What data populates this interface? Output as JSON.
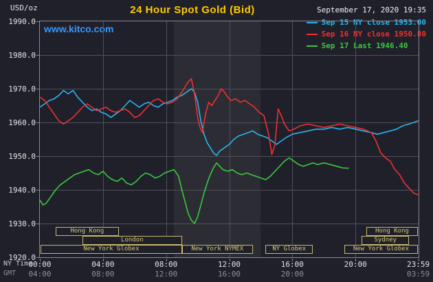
{
  "header": {
    "unit_label": "USD/oz",
    "title": "24 Hour Spot Gold (Bid)",
    "datetime": "September 17, 2020 19:35",
    "watermark": "www.kitco.com"
  },
  "legend": {
    "items": [
      {
        "label": "Sep 15 NY close 1953.00",
        "color": "#29b6f0"
      },
      {
        "label": "Sep 16 NY close 1950.80",
        "color": "#f23030"
      },
      {
        "label": "Sep 17 Last 1946.40",
        "color": "#3cc83c"
      }
    ]
  },
  "axes": {
    "ny_time_label": "NY Time",
    "gmt_label": "GMT",
    "y_ticks": [
      {
        "v": 1990,
        "label": "1990.0"
      },
      {
        "v": 1980,
        "label": "1980.0"
      },
      {
        "v": 1970,
        "label": "1970.0"
      },
      {
        "v": 1960,
        "label": "1960.0"
      },
      {
        "v": 1950,
        "label": "1950.0"
      },
      {
        "v": 1940,
        "label": "1940.0"
      },
      {
        "v": 1930,
        "label": "1930.0"
      },
      {
        "v": 1920,
        "label": "1920.0"
      }
    ],
    "x_ticks_ny": [
      {
        "t": 0,
        "label": "00:00"
      },
      {
        "t": 4,
        "label": "04:00"
      },
      {
        "t": 8,
        "label": "08:00"
      },
      {
        "t": 12,
        "label": "12:00"
      },
      {
        "t": 16,
        "label": "16:00"
      },
      {
        "t": 20,
        "label": "20:00"
      },
      {
        "t": 23.98,
        "label": "23:59"
      }
    ],
    "x_ticks_gmt": [
      {
        "t": 0,
        "label": "04:00"
      },
      {
        "t": 4,
        "label": "08:00"
      },
      {
        "t": 8,
        "label": "12:00"
      },
      {
        "t": 12,
        "label": "16:00"
      },
      {
        "t": 16,
        "label": "20:00"
      },
      {
        "t": 23.98,
        "label": "03:59"
      }
    ],
    "grid_hours": [
      4,
      8,
      12,
      16,
      20
    ],
    "grid_values": [
      1980,
      1970,
      1960,
      1950,
      1940,
      1930
    ]
  },
  "sessions": [
    {
      "label": "Hong Kong",
      "row": 0,
      "start": 1.0,
      "end": 5.0
    },
    {
      "label": "London",
      "row": 1,
      "start": 2.7,
      "end": 9.0
    },
    {
      "label": "New York Globex",
      "row": 2,
      "start": 0.05,
      "end": 9.0
    },
    {
      "label": "New York NYMEX",
      "row": 2,
      "start": 9.0,
      "end": 13.5
    },
    {
      "label": "NY Globex",
      "row": 2,
      "start": 14.3,
      "end": 17.3
    },
    {
      "label": "New York Globex",
      "row": 2,
      "start": 19.3,
      "end": 23.95
    },
    {
      "label": "Sydney",
      "row": 1,
      "start": 20.4,
      "end": 23.4
    },
    {
      "label": "Hong Kong",
      "row": 0,
      "start": 20.7,
      "end": 23.95
    }
  ],
  "colors": {
    "background": "#20202a",
    "band": "#2c2c35",
    "grid": "#50505a",
    "border": "#8a8a94",
    "axis_text": "#e6e6e6",
    "gmt_text": "#90909a",
    "session_box": "#c8b968",
    "session_text": "#d6c878",
    "title": "#ffcc00",
    "watermark": "#3399ff",
    "sep15": "#29b6f0",
    "sep16": "#f23030",
    "sep17": "#3cc83c"
  },
  "chart_data": {
    "type": "line",
    "title": "24 Hour Spot Gold (Bid)",
    "xlabel": "NY Time (hours)",
    "ylabel": "USD/oz",
    "xlim": [
      0,
      24
    ],
    "ylim": [
      1920,
      1990
    ],
    "grid": true,
    "legend_position": "top-right",
    "highlight_band": {
      "start": 8.5,
      "end": 14.0
    },
    "series": [
      {
        "name": "Sep 15",
        "close_label": "NY close 1953.00",
        "close": 1953.0,
        "color": "#29b6f0",
        "points": [
          [
            0,
            1964.5
          ],
          [
            0.3,
            1965.5
          ],
          [
            0.6,
            1966.5
          ],
          [
            0.9,
            1967
          ],
          [
            1.2,
            1968
          ],
          [
            1.5,
            1969.5
          ],
          [
            1.8,
            1968.5
          ],
          [
            2.1,
            1969.5
          ],
          [
            2.4,
            1967.5
          ],
          [
            2.7,
            1966
          ],
          [
            3,
            1964.5
          ],
          [
            3.3,
            1963.5
          ],
          [
            3.6,
            1964
          ],
          [
            3.9,
            1963
          ],
          [
            4.2,
            1962.5
          ],
          [
            4.5,
            1961.5
          ],
          [
            4.8,
            1962.5
          ],
          [
            5.1,
            1963.5
          ],
          [
            5.4,
            1965
          ],
          [
            5.7,
            1966.5
          ],
          [
            6,
            1965.5
          ],
          [
            6.3,
            1964.5
          ],
          [
            6.6,
            1965.5
          ],
          [
            6.9,
            1966
          ],
          [
            7.2,
            1965
          ],
          [
            7.5,
            1964.5
          ],
          [
            7.8,
            1965.5
          ],
          [
            8.1,
            1966
          ],
          [
            8.4,
            1966.5
          ],
          [
            8.7,
            1967.5
          ],
          [
            9,
            1968
          ],
          [
            9.3,
            1969
          ],
          [
            9.6,
            1970
          ],
          [
            9.8,
            1969
          ],
          [
            10,
            1966
          ],
          [
            10.2,
            1960.5
          ],
          [
            10.4,
            1956.5
          ],
          [
            10.6,
            1954
          ],
          [
            10.8,
            1952.5
          ],
          [
            11,
            1951
          ],
          [
            11.2,
            1950.2
          ],
          [
            11.4,
            1951.5
          ],
          [
            11.7,
            1952.5
          ],
          [
            12,
            1953.5
          ],
          [
            12.3,
            1955
          ],
          [
            12.6,
            1956
          ],
          [
            12.9,
            1956.5
          ],
          [
            13.2,
            1957
          ],
          [
            13.5,
            1957.5
          ],
          [
            13.8,
            1956.5
          ],
          [
            14.1,
            1956
          ],
          [
            14.4,
            1955.5
          ],
          [
            14.7,
            1954.5
          ],
          [
            15,
            1953.5
          ],
          [
            15.3,
            1954.5
          ],
          [
            15.6,
            1955.5
          ],
          [
            16,
            1956.5
          ],
          [
            16.5,
            1957
          ],
          [
            17,
            1957.5
          ],
          [
            17.5,
            1958
          ],
          [
            18,
            1958
          ],
          [
            18.5,
            1958.5
          ],
          [
            19,
            1958
          ],
          [
            19.5,
            1958.5
          ],
          [
            20,
            1958
          ],
          [
            20.5,
            1957.5
          ],
          [
            21,
            1957
          ],
          [
            21.4,
            1956.5
          ],
          [
            21.8,
            1957
          ],
          [
            22.2,
            1957.5
          ],
          [
            22.6,
            1958
          ],
          [
            23,
            1959
          ],
          [
            23.4,
            1959.5
          ],
          [
            23.7,
            1960
          ],
          [
            23.98,
            1960.5
          ]
        ]
      },
      {
        "name": "Sep 16",
        "close_label": "NY close 1950.80",
        "close": 1950.8,
        "color": "#f23030",
        "points": [
          [
            0,
            1967.5
          ],
          [
            0.3,
            1966.5
          ],
          [
            0.6,
            1964.5
          ],
          [
            0.9,
            1962.5
          ],
          [
            1.2,
            1960.5
          ],
          [
            1.5,
            1959.5
          ],
          [
            1.8,
            1960.5
          ],
          [
            2.1,
            1961.5
          ],
          [
            2.4,
            1963
          ],
          [
            2.7,
            1964.5
          ],
          [
            3,
            1965.5
          ],
          [
            3.3,
            1964.5
          ],
          [
            3.6,
            1963.5
          ],
          [
            3.9,
            1964
          ],
          [
            4.2,
            1964.5
          ],
          [
            4.5,
            1963.5
          ],
          [
            4.8,
            1963
          ],
          [
            5.1,
            1963.5
          ],
          [
            5.4,
            1964
          ],
          [
            5.7,
            1963
          ],
          [
            6,
            1961.5
          ],
          [
            6.3,
            1962
          ],
          [
            6.6,
            1963.5
          ],
          [
            6.9,
            1965
          ],
          [
            7.2,
            1966.5
          ],
          [
            7.5,
            1967
          ],
          [
            7.8,
            1966
          ],
          [
            8.1,
            1965.5
          ],
          [
            8.4,
            1966
          ],
          [
            8.7,
            1967
          ],
          [
            9,
            1969
          ],
          [
            9.2,
            1970.5
          ],
          [
            9.4,
            1972
          ],
          [
            9.6,
            1973
          ],
          [
            9.8,
            1968.5
          ],
          [
            10,
            1961.5
          ],
          [
            10.15,
            1958.5
          ],
          [
            10.3,
            1957
          ],
          [
            10.5,
            1962.5
          ],
          [
            10.7,
            1966
          ],
          [
            10.9,
            1965
          ],
          [
            11.1,
            1966.5
          ],
          [
            11.3,
            1968
          ],
          [
            11.5,
            1970
          ],
          [
            11.7,
            1969
          ],
          [
            11.9,
            1967.5
          ],
          [
            12.1,
            1966.5
          ],
          [
            12.4,
            1967
          ],
          [
            12.7,
            1966
          ],
          [
            13,
            1966.5
          ],
          [
            13.3,
            1965.5
          ],
          [
            13.6,
            1964.5
          ],
          [
            13.9,
            1963
          ],
          [
            14.2,
            1962
          ],
          [
            14.5,
            1956.5
          ],
          [
            14.7,
            1950.5
          ],
          [
            14.9,
            1953.5
          ],
          [
            15.1,
            1964
          ],
          [
            15.3,
            1962
          ],
          [
            15.5,
            1959.5
          ],
          [
            15.8,
            1957.5
          ],
          [
            16.1,
            1958
          ],
          [
            16.5,
            1959
          ],
          [
            17,
            1959.5
          ],
          [
            17.5,
            1959
          ],
          [
            18,
            1958.5
          ],
          [
            18.5,
            1959
          ],
          [
            19,
            1959.5
          ],
          [
            19.5,
            1959
          ],
          [
            20,
            1958.5
          ],
          [
            20.5,
            1958
          ],
          [
            21,
            1957
          ],
          [
            21.3,
            1954.5
          ],
          [
            21.6,
            1951
          ],
          [
            21.9,
            1949.5
          ],
          [
            22.2,
            1948.5
          ],
          [
            22.5,
            1946
          ],
          [
            22.8,
            1944.5
          ],
          [
            23.1,
            1942
          ],
          [
            23.4,
            1940.5
          ],
          [
            23.7,
            1939
          ],
          [
            23.98,
            1938.5
          ]
        ]
      },
      {
        "name": "Sep 17",
        "close_label": "Last 1946.40",
        "last": 1946.4,
        "color": "#3cc83c",
        "points": [
          [
            0,
            1937
          ],
          [
            0.2,
            1935.5
          ],
          [
            0.4,
            1936
          ],
          [
            0.7,
            1938
          ],
          [
            1,
            1940
          ],
          [
            1.3,
            1941.5
          ],
          [
            1.6,
            1942.5
          ],
          [
            1.9,
            1943.5
          ],
          [
            2.2,
            1944.5
          ],
          [
            2.5,
            1945
          ],
          [
            2.8,
            1945.5
          ],
          [
            3.1,
            1946
          ],
          [
            3.4,
            1945
          ],
          [
            3.7,
            1944.5
          ],
          [
            4,
            1945.5
          ],
          [
            4.3,
            1944
          ],
          [
            4.6,
            1943
          ],
          [
            4.9,
            1942.5
          ],
          [
            5.2,
            1943.5
          ],
          [
            5.5,
            1942
          ],
          [
            5.8,
            1941.5
          ],
          [
            6.1,
            1942.5
          ],
          [
            6.4,
            1944
          ],
          [
            6.7,
            1945
          ],
          [
            7,
            1944.5
          ],
          [
            7.3,
            1943.5
          ],
          [
            7.6,
            1944
          ],
          [
            7.9,
            1945
          ],
          [
            8.2,
            1945.5
          ],
          [
            8.5,
            1946
          ],
          [
            8.8,
            1944
          ],
          [
            9,
            1940
          ],
          [
            9.2,
            1936.5
          ],
          [
            9.4,
            1933
          ],
          [
            9.6,
            1931
          ],
          [
            9.8,
            1930
          ],
          [
            10,
            1932
          ],
          [
            10.2,
            1935.5
          ],
          [
            10.4,
            1939
          ],
          [
            10.6,
            1942
          ],
          [
            10.8,
            1944.5
          ],
          [
            11,
            1946.5
          ],
          [
            11.2,
            1948
          ],
          [
            11.4,
            1947
          ],
          [
            11.6,
            1946
          ],
          [
            11.9,
            1945.5
          ],
          [
            12.2,
            1946
          ],
          [
            12.5,
            1945
          ],
          [
            12.8,
            1944.5
          ],
          [
            13.1,
            1945
          ],
          [
            13.4,
            1944.5
          ],
          [
            13.7,
            1944
          ],
          [
            14,
            1943.5
          ],
          [
            14.3,
            1943
          ],
          [
            14.6,
            1944
          ],
          [
            14.9,
            1945.5
          ],
          [
            15.2,
            1947
          ],
          [
            15.5,
            1948.5
          ],
          [
            15.8,
            1949.5
          ],
          [
            16.1,
            1948.5
          ],
          [
            16.4,
            1947.5
          ],
          [
            16.7,
            1947
          ],
          [
            17,
            1947.5
          ],
          [
            17.3,
            1948
          ],
          [
            17.6,
            1947.5
          ],
          [
            18,
            1948
          ],
          [
            18.4,
            1947.5
          ],
          [
            18.8,
            1947
          ],
          [
            19.2,
            1946.5
          ],
          [
            19.58,
            1946.4
          ]
        ]
      }
    ]
  }
}
